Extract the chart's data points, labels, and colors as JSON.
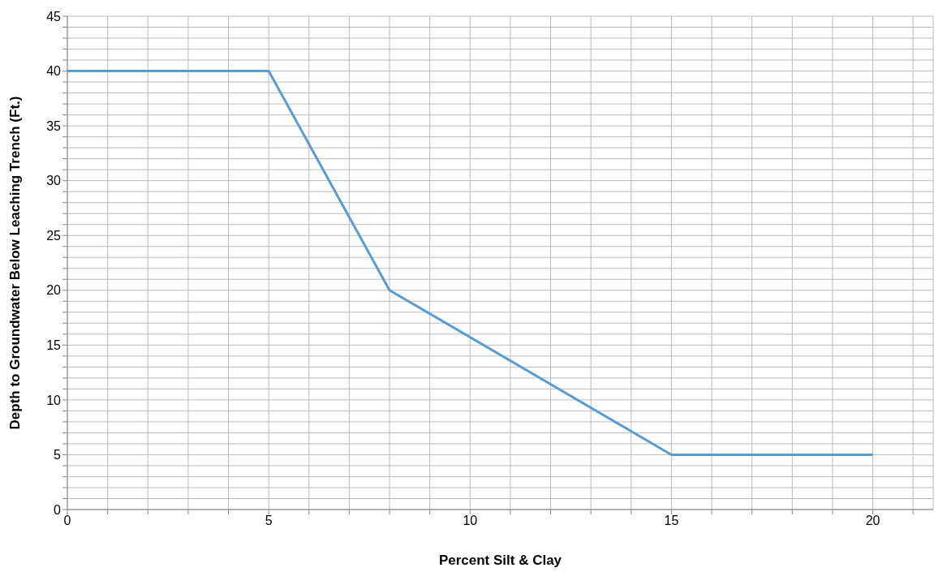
{
  "chart_data": {
    "type": "line",
    "xlabel": "Percent Silt & Clay",
    "ylabel": "Depth to Groundwater Below Leaching Trench (Ft.)",
    "x": [
      0,
      5,
      8,
      15,
      20
    ],
    "series": [
      {
        "color": "#5b9bd5",
        "values": [
          40,
          40,
          20,
          5,
          5
        ]
      }
    ],
    "xlim": [
      0,
      21.5
    ],
    "xticks": [
      0,
      {
        "value": 1,
        "label": null
      },
      {
        "value": 2,
        "label": null
      },
      {
        "value": 3,
        "label": null
      },
      {
        "value": 4,
        "label": null
      },
      5,
      {
        "value": 6,
        "label": null
      },
      {
        "value": 7,
        "label": null
      },
      {
        "value": 8,
        "label": null
      },
      {
        "value": 9,
        "label": null
      },
      10,
      {
        "value": 11,
        "label": null
      },
      {
        "value": 12,
        "label": null
      },
      {
        "value": 13,
        "label": null
      },
      {
        "value": 14,
        "label": null
      },
      15,
      {
        "value": 16,
        "label": null
      },
      {
        "value": 17,
        "label": null
      },
      {
        "value": 18,
        "label": null
      },
      {
        "value": 19,
        "label": null
      },
      20,
      {
        "value": 21,
        "label": null
      }
    ],
    "ylim": [
      0,
      45
    ],
    "yticks": [
      0,
      {
        "value": 1,
        "label": null
      },
      {
        "value": 2,
        "label": null
      },
      {
        "value": 3,
        "label": null
      },
      {
        "value": 4,
        "label": null
      },
      5,
      {
        "value": 6,
        "label": null
      },
      {
        "value": 7,
        "label": null
      },
      {
        "value": 8,
        "label": null
      },
      {
        "value": 9,
        "label": null
      },
      10,
      {
        "value": 11,
        "label": null
      },
      {
        "value": 12,
        "label": null
      },
      {
        "value": 13,
        "label": null
      },
      {
        "value": 14,
        "label": null
      },
      15,
      {
        "value": 16,
        "label": null
      },
      {
        "value": 17,
        "label": null
      },
      {
        "value": 18,
        "label": null
      },
      {
        "value": 19,
        "label": null
      },
      20,
      {
        "value": 21,
        "label": null
      },
      {
        "value": 22,
        "label": null
      },
      {
        "value": 23,
        "label": null
      },
      {
        "value": 24,
        "label": null
      },
      25,
      {
        "value": 26,
        "label": null
      },
      {
        "value": 27,
        "label": null
      },
      {
        "value": 28,
        "label": null
      },
      {
        "value": 29,
        "label": null
      },
      30,
      {
        "value": 31,
        "label": null
      },
      {
        "value": 32,
        "label": null
      },
      {
        "value": 33,
        "label": null
      },
      {
        "value": 34,
        "label": null
      },
      35,
      {
        "value": 36,
        "label": null
      },
      {
        "value": 37,
        "label": null
      },
      {
        "value": 38,
        "label": null
      },
      {
        "value": 39,
        "label": null
      },
      40,
      {
        "value": 41,
        "label": null
      },
      {
        "value": 42,
        "label": null
      },
      {
        "value": 43,
        "label": null
      },
      {
        "value": 44,
        "label": null
      },
      45
    ],
    "grid": true,
    "legend": false,
    "marker": "none",
    "line_style": "solid"
  }
}
